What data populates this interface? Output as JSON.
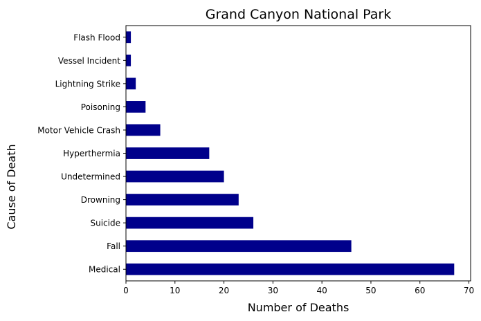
{
  "chart_data": {
    "type": "bar",
    "orientation": "horizontal",
    "title": "Grand Canyon National Park",
    "xlabel": "Number of Deaths",
    "ylabel": "Cause of Death",
    "categories": [
      "Medical",
      "Fall",
      "Suicide",
      "Drowning",
      "Undetermined",
      "Hyperthermia",
      "Motor Vehicle Crash",
      "Poisoning",
      "Lightning Strike",
      "Vessel Incident",
      "Flash Flood"
    ],
    "values": [
      67,
      46,
      26,
      23,
      20,
      17,
      7,
      4,
      2,
      1,
      1
    ],
    "xlim": [
      0,
      70.35
    ],
    "xticks": [
      "0",
      "10",
      "20",
      "30",
      "40",
      "50",
      "60",
      "70"
    ],
    "bar_color": "#00008b",
    "grid": false
  }
}
